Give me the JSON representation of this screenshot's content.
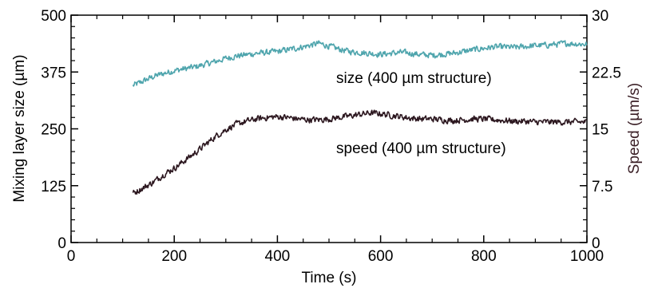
{
  "chart_data": {
    "type": "line",
    "xlabel": "Time (s)",
    "ylabel_left": "Mixing layer size (µm)",
    "ylabel_right": "Speed (µm/s)",
    "xlim": [
      0,
      1000
    ],
    "ylim_left": [
      0,
      500
    ],
    "ylim_right": [
      0,
      30
    ],
    "xticks": [
      "0",
      "200",
      "400",
      "600",
      "800",
      "1000"
    ],
    "yticks_left": [
      "0",
      "125",
      "250",
      "375",
      "500"
    ],
    "yticks_right": [
      "0",
      "7.5",
      "15",
      "22.5",
      "30"
    ],
    "grid": false,
    "annotations": [
      {
        "text": "size (400 µm structure)",
        "series": "size"
      },
      {
        "text": "speed (400 µm structure)",
        "series": "speed"
      }
    ],
    "series": [
      {
        "key": "size",
        "axis": "left",
        "color": "#4fa5ad",
        "x": [
          120,
          140,
          160,
          180,
          200,
          220,
          240,
          260,
          280,
          300,
          320,
          340,
          360,
          380,
          400,
          420,
          440,
          460,
          480,
          500,
          520,
          540,
          560,
          580,
          600,
          620,
          640,
          660,
          680,
          700,
          720,
          740,
          760,
          780,
          800,
          820,
          840,
          860,
          880,
          900,
          920,
          940,
          960,
          980,
          1000
        ],
        "y": [
          345,
          355,
          365,
          372,
          378,
          382,
          386,
          392,
          398,
          405,
          410,
          413,
          416,
          418,
          420,
          424,
          428,
          433,
          438,
          432,
          425,
          420,
          418,
          416,
          414,
          416,
          418,
          416,
          413,
          412,
          414,
          416,
          420,
          424,
          427,
          430,
          430,
          429,
          431,
          433,
          434,
          436,
          438,
          437,
          436
        ]
      },
      {
        "key": "speed",
        "axis": "right",
        "color": "#2d1820",
        "x": [
          120,
          140,
          160,
          180,
          200,
          220,
          240,
          260,
          280,
          300,
          320,
          340,
          360,
          380,
          400,
          420,
          440,
          460,
          480,
          500,
          520,
          540,
          560,
          580,
          600,
          620,
          640,
          660,
          680,
          700,
          720,
          740,
          760,
          780,
          800,
          820,
          840,
          860,
          880,
          900,
          920,
          940,
          960,
          980,
          1000
        ],
        "y": [
          6.5,
          7.2,
          8.0,
          9.0,
          9.8,
          10.8,
          11.8,
          12.9,
          14.0,
          14.9,
          15.6,
          16.0,
          16.3,
          16.5,
          16.6,
          16.5,
          16.3,
          16.2,
          16.2,
          16.3,
          16.5,
          16.7,
          16.9,
          17.1,
          17.0,
          16.8,
          16.6,
          16.4,
          16.3,
          16.3,
          16.2,
          16.1,
          16.2,
          16.3,
          16.3,
          16.2,
          16.1,
          16.0,
          16.0,
          15.9,
          15.9,
          15.9,
          15.9,
          15.9,
          15.9
        ]
      }
    ]
  }
}
